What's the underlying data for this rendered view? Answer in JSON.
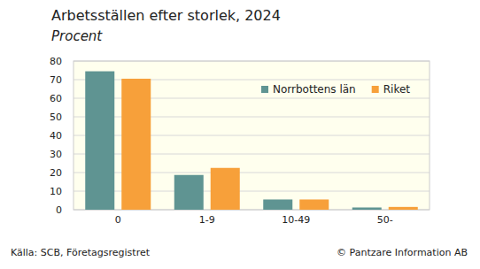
{
  "chart_data": {
    "type": "bar",
    "title": "Arbetsställen efter storlek, 2024",
    "subtitle": "Procent",
    "categories": [
      "0",
      "1-9",
      "10-49",
      "50-"
    ],
    "series": [
      {
        "name": "Norrbottens län",
        "color": "#5f9492",
        "values": [
          74.5,
          18.7,
          5.5,
          1.2
        ]
      },
      {
        "name": "Riket",
        "color": "#f7a03a",
        "values": [
          70.5,
          22.5,
          5.5,
          1.5
        ]
      }
    ],
    "ylim": [
      0,
      80
    ],
    "yticks": [
      0,
      10,
      20,
      30,
      40,
      50,
      60,
      70,
      80
    ],
    "grid": true,
    "legend": "top-right",
    "source": "Källa: SCB, Företagsregistret",
    "credit": "© Pantzare Information AB"
  }
}
